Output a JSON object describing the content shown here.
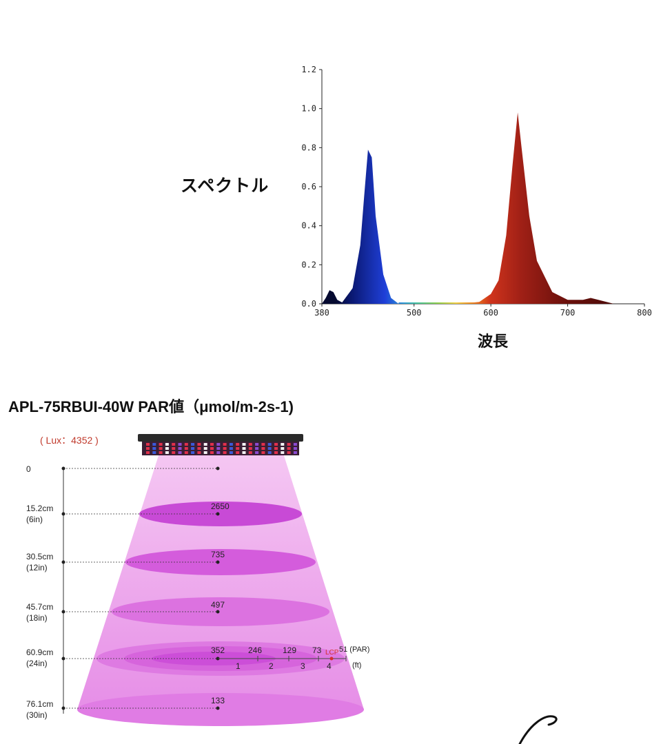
{
  "chart_data": [
    {
      "type": "area",
      "ylabel": "スペクトル",
      "xlabel": "波長",
      "xlim": [
        380,
        800
      ],
      "ylim": [
        0,
        1.2
      ],
      "x_ticks": [
        "380",
        "500",
        "600",
        "700",
        "800"
      ],
      "y_ticks": [
        "0.0",
        "0.2",
        "0.4",
        "0.6",
        "0.8",
        "1.0",
        "1.2"
      ],
      "series": [
        {
          "color": "#0a1a5c",
          "x": [
            380,
            385,
            390,
            395,
            400,
            405,
            410
          ],
          "y": [
            0.0,
            0.03,
            0.07,
            0.06,
            0.02,
            0.01,
            0.0
          ]
        },
        {
          "color": "#1f3fd0",
          "x": [
            405,
            420,
            430,
            435,
            440,
            445,
            450,
            460,
            470,
            480
          ],
          "y": [
            0.0,
            0.08,
            0.3,
            0.55,
            0.79,
            0.75,
            0.45,
            0.15,
            0.03,
            0.0
          ]
        },
        {
          "color": "#b8281c",
          "x": [
            480,
            560,
            585,
            600,
            610,
            620,
            628,
            635,
            640,
            650,
            660,
            680,
            700,
            720,
            730,
            740,
            760,
            780
          ],
          "y": [
            0.0,
            0.0,
            0.01,
            0.05,
            0.12,
            0.35,
            0.7,
            0.98,
            0.8,
            0.45,
            0.22,
            0.06,
            0.02,
            0.02,
            0.03,
            0.02,
            0.0,
            0.0
          ]
        }
      ]
    },
    {
      "type": "table",
      "title": "APL-75RBUI-40W PAR値（μmol/m-2s-1)",
      "lux": "( Lux：4352 )",
      "rows": [
        {
          "dist": "0",
          "dist_in": "",
          "par": ""
        },
        {
          "dist": "15.2cm",
          "dist_in": "(6in)",
          "par": "2650"
        },
        {
          "dist": "30.5cm",
          "dist_in": "(12in)",
          "par": "735"
        },
        {
          "dist": "45.7cm",
          "dist_in": "(18in)",
          "par": "497"
        },
        {
          "dist": "60.9cm",
          "dist_in": "(24in)",
          "par": "352"
        },
        {
          "dist": "76.1cm",
          "dist_in": "(30in)",
          "par": "133"
        }
      ],
      "horizontal": {
        "values": [
          "246",
          "129",
          "73",
          "51 (PAR)"
        ],
        "ft_labels": [
          "1",
          "2",
          "3",
          "4",
          "(ft)"
        ],
        "lcp_label": "LCP"
      }
    }
  ]
}
